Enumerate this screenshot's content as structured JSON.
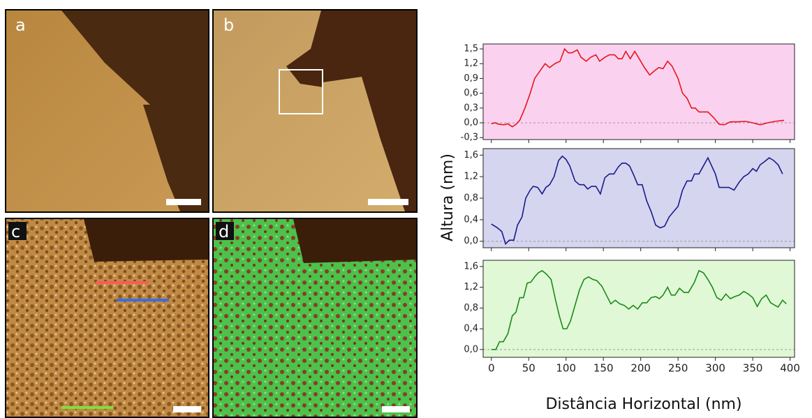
{
  "panels": [
    "a",
    "b",
    "c",
    "d"
  ],
  "chart_data": [
    {
      "type": "line",
      "xlim": [
        -11,
        406
      ],
      "ylim": [
        -0.34,
        1.6
      ],
      "show_xtick_labels": false,
      "background": "#fad2ef",
      "xticks": [
        0,
        50,
        100,
        150,
        200,
        250,
        300,
        350,
        400
      ],
      "yticks": [
        {
          "value": -0.3,
          "label": "-0,3"
        },
        {
          "value": 0,
          "label": "0,0"
        },
        {
          "value": 0.3,
          "label": "0,3"
        },
        {
          "value": 0.6,
          "label": "0,6"
        },
        {
          "value": 0.9,
          "label": "0,9"
        },
        {
          "value": 1.2,
          "label": "1,2"
        },
        {
          "value": 1.5,
          "label": "1,5"
        }
      ],
      "x": [
        0,
        5,
        10,
        17,
        22,
        28,
        33,
        38,
        45,
        52,
        58,
        65,
        72,
        78,
        85,
        92,
        98,
        103,
        108,
        115,
        120,
        127,
        133,
        140,
        145,
        152,
        158,
        165,
        170,
        175,
        180,
        186,
        192,
        198,
        205,
        212,
        218,
        224,
        230,
        236,
        242,
        250,
        256,
        262,
        268,
        273,
        278,
        290,
        298,
        305,
        312,
        320,
        330,
        340,
        350,
        360,
        370,
        380,
        392
      ],
      "series": [
        {
          "color": "#e8141a",
          "values": [
            -0.02,
            0.0,
            -0.03,
            -0.04,
            -0.02,
            -0.08,
            -0.03,
            0.05,
            0.3,
            0.6,
            0.9,
            1.05,
            1.2,
            1.12,
            1.2,
            1.25,
            1.5,
            1.42,
            1.42,
            1.48,
            1.33,
            1.25,
            1.33,
            1.38,
            1.25,
            1.33,
            1.38,
            1.38,
            1.3,
            1.3,
            1.45,
            1.3,
            1.45,
            1.3,
            1.12,
            0.97,
            1.05,
            1.12,
            1.1,
            1.25,
            1.15,
            0.9,
            0.6,
            0.5,
            0.3,
            0.3,
            0.22,
            0.22,
            0.1,
            -0.03,
            -0.04,
            0.02,
            0.02,
            0.03,
            0.0,
            -0.04,
            0.0,
            0.03,
            0.05
          ]
        }
      ]
    },
    {
      "type": "line",
      "xlim": [
        -11,
        406
      ],
      "ylim": [
        -0.12,
        1.72
      ],
      "show_xtick_labels": false,
      "background": "#d5d5f0",
      "ylabel": "Altura (nm)",
      "xticks": [
        0,
        50,
        100,
        150,
        200,
        250,
        300,
        350,
        400
      ],
      "yticks": [
        {
          "value": 0,
          "label": "0,0"
        },
        {
          "value": 0.4,
          "label": "0,4"
        },
        {
          "value": 0.8,
          "label": "0,8"
        },
        {
          "value": 1.2,
          "label": "1,2"
        },
        {
          "value": 1.6,
          "label": "1,6"
        }
      ],
      "x": [
        0,
        8,
        14,
        19,
        24,
        30,
        35,
        41,
        46,
        52,
        56,
        62,
        68,
        73,
        78,
        84,
        90,
        95,
        100,
        105,
        112,
        118,
        124,
        129,
        134,
        140,
        146,
        152,
        158,
        164,
        170,
        175,
        180,
        185,
        190,
        196,
        202,
        208,
        214,
        220,
        226,
        232,
        238,
        244,
        250,
        256,
        262,
        268,
        272,
        278,
        284,
        290,
        295,
        300,
        305,
        318,
        325,
        332,
        338,
        344,
        350,
        355,
        360,
        366,
        372,
        378,
        384,
        390
      ],
      "series": [
        {
          "color": "#1a1a8a",
          "values": [
            0.32,
            0.25,
            0.18,
            -0.05,
            0.02,
            0.02,
            0.3,
            0.45,
            0.8,
            0.95,
            1.02,
            1.0,
            0.88,
            1.0,
            1.05,
            1.2,
            1.5,
            1.58,
            1.52,
            1.4,
            1.12,
            1.05,
            1.05,
            0.97,
            1.02,
            1.02,
            0.88,
            1.18,
            1.25,
            1.25,
            1.38,
            1.45,
            1.45,
            1.4,
            1.25,
            1.05,
            1.05,
            0.75,
            0.55,
            0.3,
            0.25,
            0.28,
            0.45,
            0.55,
            0.65,
            0.95,
            1.12,
            1.12,
            1.25,
            1.25,
            1.4,
            1.55,
            1.4,
            1.25,
            1.0,
            1.0,
            0.95,
            1.1,
            1.2,
            1.25,
            1.35,
            1.3,
            1.42,
            1.48,
            1.55,
            1.5,
            1.42,
            1.25
          ]
        }
      ]
    },
    {
      "type": "line",
      "xlim": [
        -11,
        406
      ],
      "ylim": [
        -0.15,
        1.72
      ],
      "show_xtick_labels": true,
      "background": "#e0f8d5",
      "xlabel": "Distância Horizontal (nm)",
      "xticks": [
        0,
        50,
        100,
        150,
        200,
        250,
        300,
        350,
        400
      ],
      "yticks": [
        {
          "value": 0,
          "label": "0,0"
        },
        {
          "value": 0.4,
          "label": "0,4"
        },
        {
          "value": 0.8,
          "label": "0,8"
        },
        {
          "value": 1.2,
          "label": "1,2"
        },
        {
          "value": 1.6,
          "label": "1,6"
        }
      ],
      "x": [
        0,
        6,
        11,
        16,
        22,
        28,
        33,
        38,
        43,
        48,
        53,
        58,
        63,
        68,
        74,
        80,
        86,
        91,
        96,
        101,
        106,
        112,
        118,
        124,
        130,
        136,
        141,
        148,
        154,
        160,
        166,
        172,
        178,
        184,
        190,
        196,
        202,
        208,
        214,
        220,
        225,
        230,
        236,
        241,
        246,
        252,
        258,
        264,
        272,
        278,
        284,
        290,
        296,
        302,
        308,
        314,
        320,
        326,
        332,
        338,
        344,
        350,
        356,
        362,
        368,
        374,
        380,
        384,
        390,
        395
      ],
      "series": [
        {
          "color": "#1a8a1a",
          "values": [
            0.0,
            0.0,
            0.15,
            0.15,
            0.3,
            0.65,
            0.72,
            1.0,
            1.0,
            1.28,
            1.3,
            1.4,
            1.48,
            1.52,
            1.45,
            1.35,
            0.95,
            0.65,
            0.4,
            0.4,
            0.55,
            0.85,
            1.15,
            1.35,
            1.4,
            1.35,
            1.33,
            1.22,
            1.05,
            0.88,
            0.95,
            0.88,
            0.85,
            0.78,
            0.85,
            0.78,
            0.9,
            0.9,
            1.0,
            1.02,
            0.98,
            1.05,
            1.2,
            1.05,
            1.05,
            1.18,
            1.1,
            1.1,
            1.3,
            1.52,
            1.48,
            1.35,
            1.2,
            1.0,
            0.95,
            1.07,
            0.98,
            1.02,
            1.05,
            1.12,
            1.07,
            1.0,
            0.83,
            0.98,
            1.05,
            0.9,
            0.85,
            0.82,
            0.95,
            0.88
          ]
        }
      ]
    }
  ]
}
